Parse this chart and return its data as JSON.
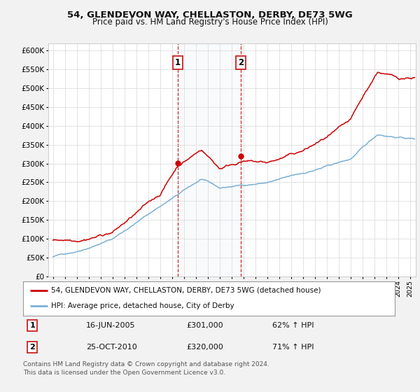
{
  "title1": "54, GLENDEVON WAY, CHELLASTON, DERBY, DE73 5WG",
  "title2": "Price paid vs. HM Land Registry's House Price Index (HPI)",
  "ylabel_ticks": [
    "£0",
    "£50K",
    "£100K",
    "£150K",
    "£200K",
    "£250K",
    "£300K",
    "£350K",
    "£400K",
    "£450K",
    "£500K",
    "£550K",
    "£600K"
  ],
  "ytick_vals": [
    0,
    50000,
    100000,
    150000,
    200000,
    250000,
    300000,
    350000,
    400000,
    450000,
    500000,
    550000,
    600000
  ],
  "xlim_start": 1994.6,
  "xlim_end": 2025.5,
  "ylim_min": 0,
  "ylim_max": 620000,
  "sale1_date": 2005.46,
  "sale1_price": 301000,
  "sale2_date": 2010.81,
  "sale2_price": 320000,
  "sale1_label": "16-JUN-2005",
  "sale1_amount": "£301,000",
  "sale1_pct": "62% ↑ HPI",
  "sale2_label": "25-OCT-2010",
  "sale2_amount": "£320,000",
  "sale2_pct": "71% ↑ HPI",
  "hpi_color": "#7bafd4",
  "price_color": "#cc0000",
  "legend1": "54, GLENDEVON WAY, CHELLASTON, DERBY, DE73 5WG (detached house)",
  "legend2": "HPI: Average price, detached house, City of Derby",
  "footer": "Contains HM Land Registry data © Crown copyright and database right 2024.\nThis data is licensed under the Open Government Licence v3.0.",
  "background_color": "#f2f2f2",
  "plot_bg_color": "#ffffff"
}
